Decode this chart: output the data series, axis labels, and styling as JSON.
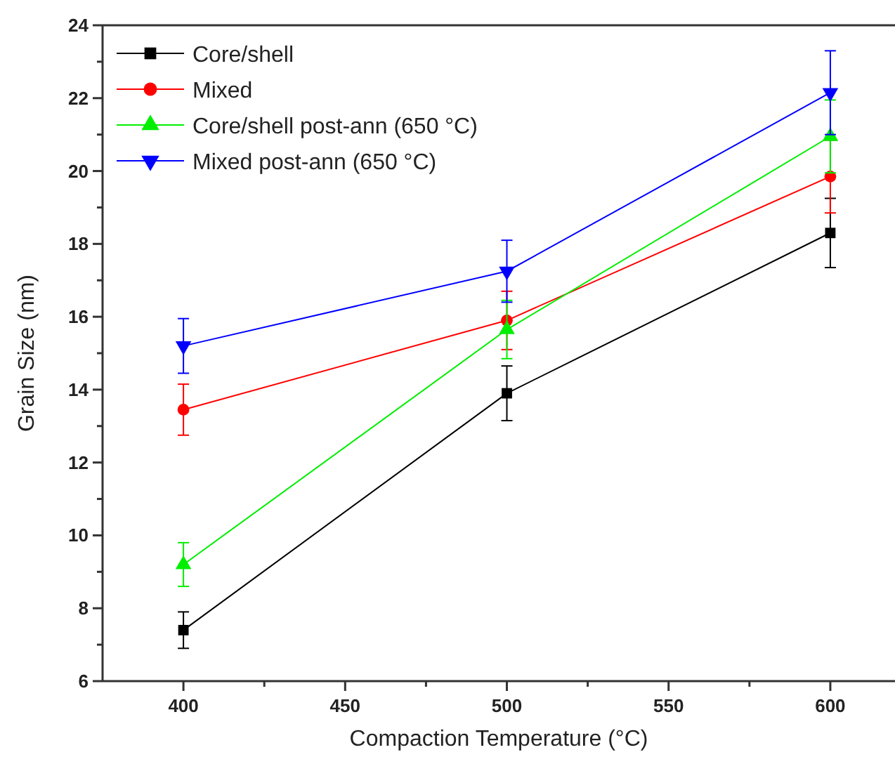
{
  "chart_data": {
    "type": "line",
    "xlabel": "Compaction Temperature (°C)",
    "ylabel": "Grain Size (nm)",
    "x": [
      400,
      500,
      600
    ],
    "series": [
      {
        "name": "Core/shell",
        "color": "#000000",
        "marker": "square",
        "values": [
          7.4,
          13.9,
          18.3
        ],
        "errors": [
          0.5,
          0.75,
          0.95
        ]
      },
      {
        "name": "Mixed",
        "color": "#ff0000",
        "marker": "circle",
        "values": [
          13.45,
          15.9,
          19.85
        ],
        "errors": [
          0.7,
          0.8,
          1.0
        ]
      },
      {
        "name": "Core/shell post-ann (650 °C)",
        "color": "#00ee00",
        "marker": "triangle",
        "values": [
          9.2,
          15.65,
          20.95
        ],
        "errors": [
          0.6,
          0.8,
          1.0
        ]
      },
      {
        "name": "Mixed post-ann (650 °C)",
        "color": "#0000ff",
        "marker": "triangle-down",
        "values": [
          15.2,
          17.25,
          22.15
        ],
        "errors": [
          0.75,
          0.85,
          1.15
        ]
      }
    ],
    "xlim": [
      375,
      620
    ],
    "ylim": [
      6,
      24
    ],
    "xticks": [
      400,
      {
        "value": 425,
        "label": null
      },
      450,
      {
        "value": 475,
        "label": null
      },
      500,
      {
        "value": 525,
        "label": null
      },
      550,
      {
        "value": 575,
        "label": null
      },
      600
    ],
    "yticks": [
      6,
      {
        "value": 7,
        "label": null
      },
      8,
      {
        "value": 9,
        "label": null
      },
      10,
      {
        "value": 11,
        "label": null
      },
      12,
      {
        "value": 13,
        "label": null
      },
      14,
      {
        "value": 15,
        "label": null
      },
      16,
      {
        "value": 17,
        "label": null
      },
      18,
      {
        "value": 19,
        "label": null
      },
      20,
      {
        "value": 21,
        "label": null
      },
      22,
      {
        "value": 23,
        "label": null
      },
      24
    ],
    "grid": false,
    "legend": "top left",
    "line_style": "solid"
  }
}
